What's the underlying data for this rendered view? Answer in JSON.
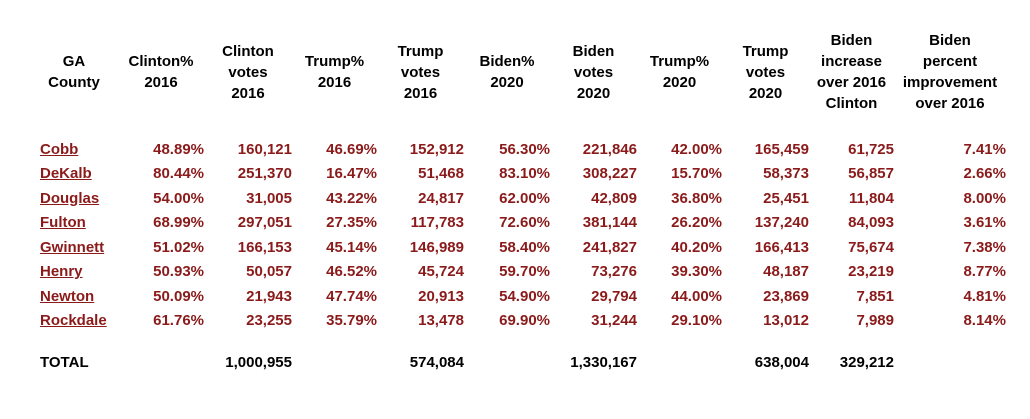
{
  "headers": [
    [
      "GA",
      "County"
    ],
    [
      "Clinton%",
      "2016"
    ],
    [
      "Clinton",
      "votes",
      "2016"
    ],
    [
      "Trump%",
      "2016"
    ],
    [
      "Trump",
      "votes",
      "2016"
    ],
    [
      "Biden%",
      "2020"
    ],
    [
      "Biden",
      "votes",
      "2020"
    ],
    [
      "Trump%",
      "2020"
    ],
    [
      "Trump",
      "votes",
      "2020"
    ],
    [
      "Biden",
      "increase",
      "over 2016",
      "Clinton"
    ],
    [
      "Biden",
      "percent",
      "improvement",
      "over 2016"
    ]
  ],
  "rows": [
    [
      "Cobb",
      "48.89%",
      "160,121",
      "46.69%",
      "152,912",
      "56.30%",
      "221,846",
      "42.00%",
      "165,459",
      "61,725",
      "7.41%"
    ],
    [
      "DeKalb",
      "80.44%",
      "251,370",
      "16.47%",
      "51,468",
      "83.10%",
      "308,227",
      "15.70%",
      "58,373",
      "56,857",
      "2.66%"
    ],
    [
      "Douglas",
      "54.00%",
      "31,005",
      "43.22%",
      "24,817",
      "62.00%",
      "42,809",
      "36.80%",
      "25,451",
      "11,804",
      "8.00%"
    ],
    [
      "Fulton",
      "68.99%",
      "297,051",
      "27.35%",
      "117,783",
      "72.60%",
      "381,144",
      "26.20%",
      "137,240",
      "84,093",
      "3.61%"
    ],
    [
      "Gwinnett",
      "51.02%",
      "166,153",
      "45.14%",
      "146,989",
      "58.40%",
      "241,827",
      "40.20%",
      "166,413",
      "75,674",
      "7.38%"
    ],
    [
      "Henry",
      "50.93%",
      "50,057",
      "46.52%",
      "45,724",
      "59.70%",
      "73,276",
      "39.30%",
      "48,187",
      "23,219",
      "8.77%"
    ],
    [
      "Newton",
      "50.09%",
      "21,943",
      "47.74%",
      "20,913",
      "54.90%",
      "29,794",
      "44.00%",
      "23,869",
      "7,851",
      "4.81%"
    ],
    [
      "Rockdale",
      "61.76%",
      "23,255",
      "35.79%",
      "13,478",
      "69.90%",
      "31,244",
      "29.10%",
      "13,012",
      "7,989",
      "8.14%"
    ]
  ],
  "total": [
    "TOTAL",
    "",
    "1,000,955",
    "",
    "574,084",
    "",
    "1,330,167",
    "",
    "638,004",
    "329,212",
    ""
  ],
  "colors": {
    "data_text": "#8b1a1a",
    "header_text": "#000000"
  }
}
